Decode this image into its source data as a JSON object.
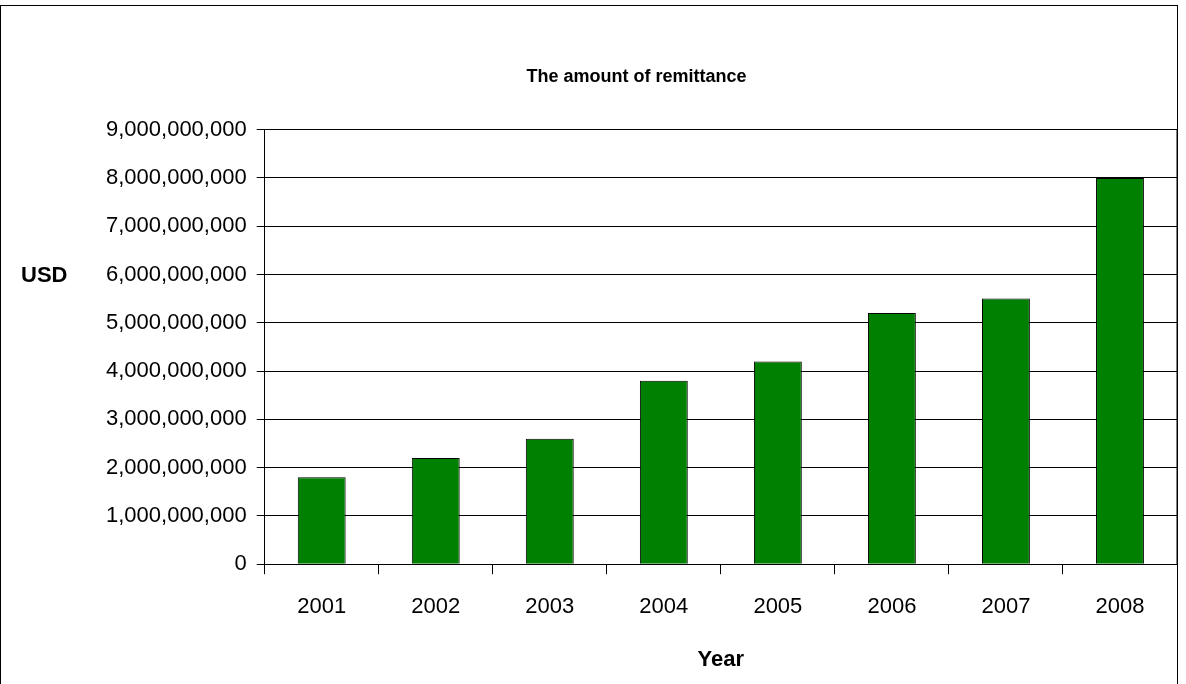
{
  "chart_data": {
    "type": "bar",
    "title": "The amount of remittance",
    "xlabel": "Year",
    "ylabel": "USD",
    "categories": [
      "2001",
      "2002",
      "2003",
      "2004",
      "2005",
      "2006",
      "2007",
      "2008"
    ],
    "values": [
      1800000000,
      2200000000,
      2600000000,
      3800000000,
      4200000000,
      5200000000,
      5500000000,
      8000000000
    ],
    "color": "#008000",
    "ylim": [
      0,
      9000000000
    ],
    "yticks": [
      0,
      {
        "value": 1000000000,
        "label": "1,000,000,000"
      },
      {
        "value": 2000000000,
        "label": "2,000,000,000"
      },
      {
        "value": 3000000000,
        "label": "3,000,000,000"
      },
      {
        "value": 4000000000,
        "label": "4,000,000,000"
      },
      {
        "value": 5000000000,
        "label": "5,000,000,000"
      },
      {
        "value": 6000000000,
        "label": "6,000,000,000"
      },
      {
        "value": 7000000000,
        "label": "7,000,000,000"
      },
      {
        "value": 8000000000,
        "label": "8,000,000,000"
      },
      {
        "value": 9000000000,
        "label": "9,000,000,000"
      }
    ],
    "grid": "y"
  }
}
